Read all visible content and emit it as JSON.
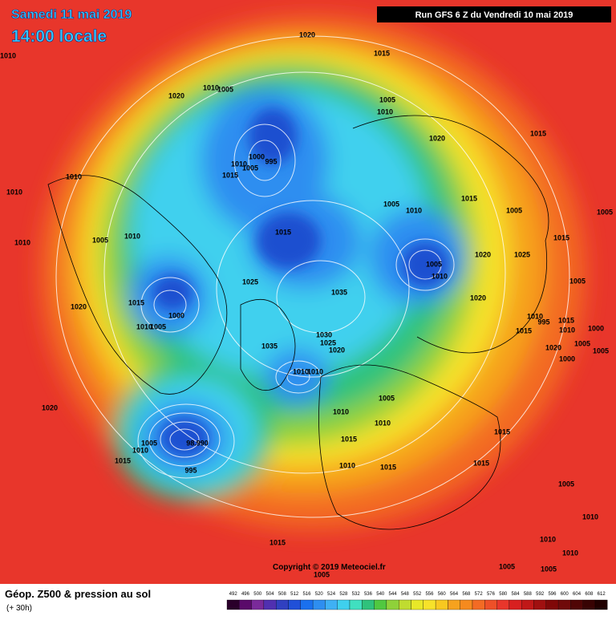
{
  "header": {
    "date": "Samedi 11 mai 2019",
    "time": "14:00 locale",
    "run": "Run GFS 6 Z du Vendredi 10 mai 2019"
  },
  "footer": {
    "title": "Géop. Z500 & pression au sol",
    "lead": "(+ 30h)",
    "copyright": "Copyright © 2019 Meteociel.fr"
  },
  "scale": [
    492,
    496,
    500,
    504,
    508,
    512,
    516,
    520,
    524,
    528,
    532,
    536,
    540,
    544,
    548,
    552,
    556,
    560,
    564,
    568,
    572,
    576,
    580,
    584,
    588,
    592,
    596,
    600,
    604,
    608,
    612
  ],
  "pressure_labels": [
    "1020",
    "1010",
    "1015",
    "1010",
    "1005",
    "1020",
    "1005",
    "1010",
    "1020",
    "1015",
    "1010",
    "1010",
    "1000",
    "1010",
    "1005",
    "995",
    "1015",
    "1015",
    "1005",
    "1010",
    "1005",
    "1005",
    "1010",
    "1005",
    "1010",
    "1015",
    "1015",
    "1020",
    "1025",
    "1005",
    "1010",
    "1025",
    "1005",
    "1035",
    "1020",
    "1015",
    "1020",
    "1010",
    "995",
    "1015",
    "1000",
    "1010",
    "1005",
    "1015",
    "1010",
    "1000",
    "1030",
    "1025",
    "1020",
    "1035",
    "1020",
    "1005",
    "1005",
    "1000",
    "1010",
    "1010",
    "1005",
    "1010",
    "1010",
    "1015",
    "1015",
    "1005",
    "98.990",
    "1010",
    "1015",
    "995",
    "1010",
    "1015",
    "1015",
    "1020",
    "1005",
    "1010",
    "1015",
    "1010",
    "1010",
    "1005",
    "1005",
    "1005"
  ]
}
